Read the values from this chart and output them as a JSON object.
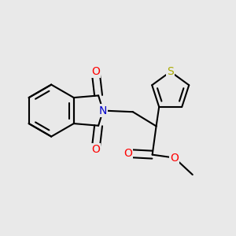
{
  "background_color": "#e9e9e9",
  "bond_color": "#000000",
  "atom_colors": {
    "N": "#0000cc",
    "O": "#ff0000",
    "S": "#aaaa00"
  },
  "bond_width": 1.5,
  "figsize": [
    3.0,
    3.0
  ],
  "dpi": 100
}
